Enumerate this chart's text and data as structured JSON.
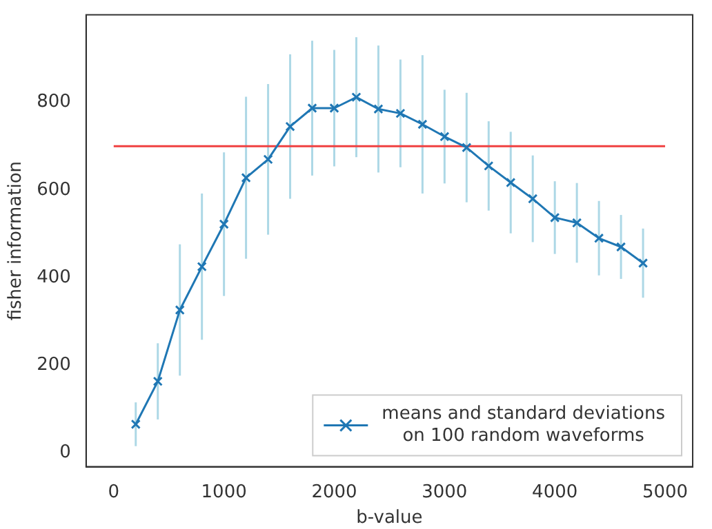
{
  "chart_data": {
    "type": "line",
    "xlabel": "b-value",
    "ylabel": "fisher information",
    "x": [
      200,
      400,
      600,
      800,
      1000,
      1200,
      1400,
      1600,
      1800,
      2000,
      2200,
      2400,
      2600,
      2800,
      3000,
      3200,
      3400,
      3600,
      3800,
      4000,
      4200,
      4400,
      4600,
      4800
    ],
    "series": [
      {
        "name": "means and standard deviations\non 100 random waveforms",
        "color": "#1f77b4",
        "values": [
          65,
          163,
          326,
          425,
          522,
          628,
          670,
          745,
          787,
          787,
          812,
          785,
          775,
          750,
          722,
          697,
          655,
          617,
          580,
          537,
          525,
          490,
          470,
          433
        ],
        "errors": [
          50,
          87,
          150,
          167,
          164,
          185,
          172,
          165,
          154,
          133,
          137,
          145,
          123,
          158,
          107,
          125,
          102,
          116,
          99,
          83,
          91,
          85,
          73,
          79
        ],
        "marker": "cross"
      },
      {
        "type": "line",
        "color": "#f04040",
        "x": [
          0,
          5000
        ],
        "values": [
          700,
          700
        ],
        "marker": "none"
      }
    ],
    "xlim": [
      -250,
      5250
    ],
    "ylim": [
      -32,
      1000
    ],
    "xticks": [
      0,
      1000,
      2000,
      3000,
      4000,
      5000
    ],
    "yticks": [
      0,
      200,
      400,
      600,
      800
    ],
    "grid": false,
    "legend": "bottom right",
    "line_style": "solid"
  }
}
